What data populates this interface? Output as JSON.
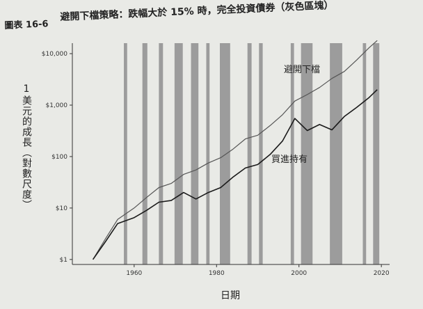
{
  "figure": {
    "label": "圖表 16-6",
    "title": "避開下檔策略：跌幅大於 15% 時，完全投資債券（灰色區塊）"
  },
  "chart_data": {
    "type": "line",
    "title": "避開下檔策略：跌幅大於 15% 時，完全投資債券（灰色區塊）",
    "xlabel": "日期",
    "ylabel": "1美元的成長（對數尺度）",
    "y_scale": "log",
    "xlim": [
      1945,
      2022
    ],
    "ylim": [
      0.8,
      16000
    ],
    "x_ticks": [
      1960,
      1980,
      2000,
      2020
    ],
    "x_tick_labels": [
      "1960",
      "1980",
      "2000",
      "2020"
    ],
    "y_ticks": [
      1,
      10,
      100,
      1000,
      10000
    ],
    "y_tick_labels": [
      "$1",
      "$10",
      "$100",
      "$1,000",
      "$10,000"
    ],
    "grid": false,
    "legend": "inline labels",
    "shaded_periods": [
      [
        1957.5,
        1958.3
      ],
      [
        1962.0,
        1963.2
      ],
      [
        1966.0,
        1967.0
      ],
      [
        1969.8,
        1971.8
      ],
      [
        1973.8,
        1975.6
      ],
      [
        1977.5,
        1978.3
      ],
      [
        1980.8,
        1983.3
      ],
      [
        1987.5,
        1988.5
      ],
      [
        1990.3,
        1991.2
      ],
      [
        1998.0,
        1998.8
      ],
      [
        2000.5,
        2003.3
      ],
      [
        2007.5,
        2010.5
      ],
      [
        2015.5,
        2016.3
      ],
      [
        2018.0,
        2019.5
      ]
    ],
    "shade_color": "#9c9c9c",
    "series": [
      {
        "name": "避開下檔",
        "color": "#555555",
        "x": [
          1950,
          1953,
          1956,
          1960,
          1963,
          1966,
          1969,
          1972,
          1975,
          1978,
          1981,
          1984,
          1987,
          1990,
          1993,
          1996,
          1999,
          2002,
          2005,
          2008,
          2011,
          2014,
          2017,
          2019
        ],
        "y": [
          1,
          2.5,
          6,
          10,
          16,
          25,
          30,
          45,
          55,
          75,
          95,
          140,
          220,
          260,
          400,
          650,
          1200,
          1600,
          2200,
          3300,
          4500,
          7500,
          13000,
          18000
        ]
      },
      {
        "name": "買進持有",
        "color": "#1a1a1a",
        "x": [
          1950,
          1953,
          1956,
          1960,
          1963,
          1966,
          1969,
          1972,
          1975,
          1978,
          1981,
          1984,
          1987,
          1990,
          1993,
          1996,
          1999,
          2002,
          2005,
          2008,
          2011,
          2014,
          2017,
          2019
        ],
        "y": [
          1,
          2.2,
          5,
          6.5,
          9,
          13,
          14,
          20,
          15,
          20,
          25,
          40,
          60,
          70,
          110,
          200,
          550,
          320,
          420,
          330,
          600,
          900,
          1400,
          2000
        ]
      }
    ]
  }
}
